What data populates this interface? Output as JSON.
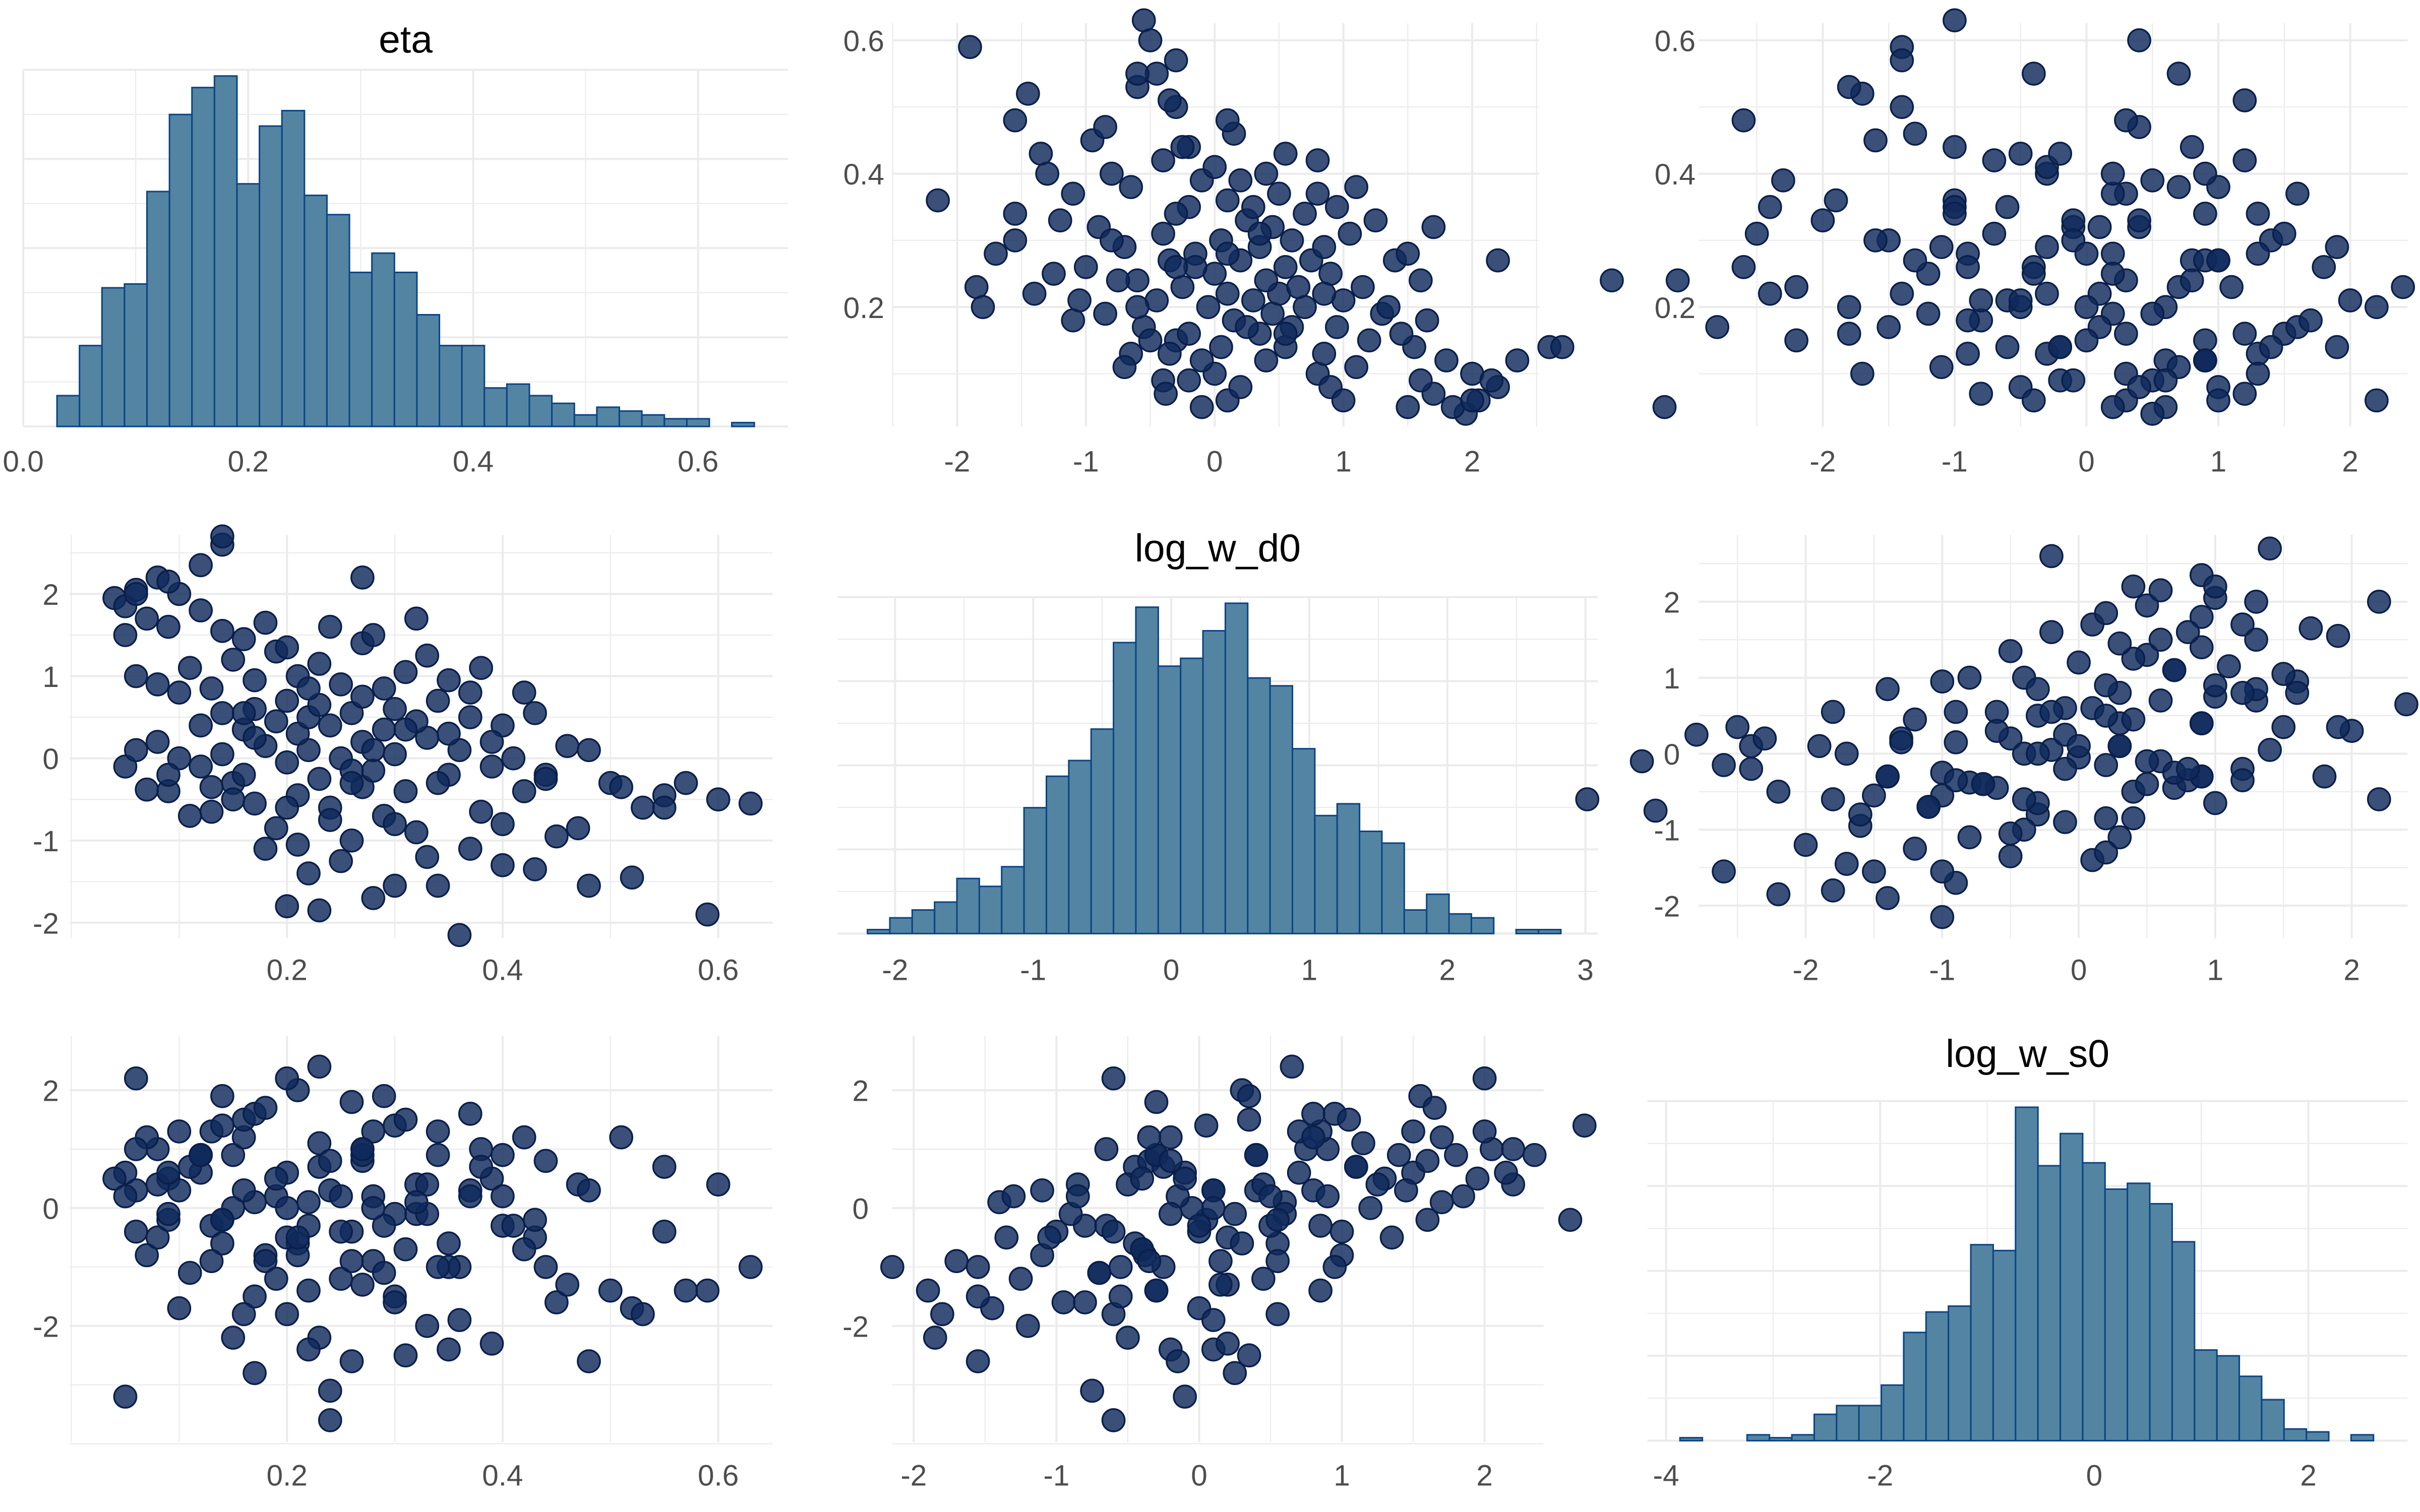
{
  "chart_data": {
    "type": "pairs",
    "variables": [
      "eta",
      "log_w_d0",
      "log_w_s0"
    ],
    "colors": {
      "hist_fill": "#5385a3",
      "hist_stroke": "#0d4584",
      "point_fill": "#0f2a5c",
      "point_stroke": "#0a1f4a",
      "grid": "#ebebeb"
    },
    "histograms": {
      "eta": {
        "start": 0.03,
        "binwidth": 0.02,
        "counts": [
          8,
          21,
          36,
          37,
          61,
          81,
          88,
          91,
          63,
          78,
          82,
          60,
          55,
          40,
          45,
          40,
          29,
          21,
          21,
          10,
          11,
          8,
          6,
          3,
          5,
          4,
          3,
          2,
          2,
          0,
          1
        ]
      },
      "log_w_d0": {
        "start": -2.2,
        "binwidth": 0.162,
        "counts": [
          1,
          4,
          6,
          8,
          14,
          12,
          17,
          32,
          40,
          44,
          52,
          74,
          83,
          68,
          70,
          77,
          84,
          65,
          63,
          47,
          30,
          33,
          26,
          23,
          6,
          10,
          5,
          4,
          0,
          1,
          1
        ]
      },
      "log_w_s0": {
        "start": -3.87,
        "binwidth": 0.209,
        "counts": [
          1,
          0,
          0,
          2,
          1,
          2,
          9,
          12,
          12,
          19,
          37,
          44,
          46,
          67,
          65,
          114,
          94,
          105,
          95,
          86,
          88,
          81,
          68,
          31,
          29,
          22,
          14,
          4,
          3,
          0,
          2
        ]
      }
    },
    "samples_columns": [
      "eta",
      "log_w_d0",
      "log_w_s0"
    ],
    "samples": [
      [
        0.59,
        -1.9,
        -1.4
      ],
      [
        0.36,
        -2.15,
        -1.0
      ],
      [
        0.23,
        -1.85,
        -2.2
      ],
      [
        0.2,
        -1.8,
        -1.8
      ],
      [
        0.48,
        -1.55,
        -2.6
      ],
      [
        0.52,
        -1.45,
        -1.7
      ],
      [
        0.43,
        -1.35,
        -0.5
      ],
      [
        0.3,
        -1.55,
        -1.5
      ],
      [
        0.28,
        -1.7,
        -0.9
      ],
      [
        0.33,
        -1.2,
        -2.0
      ],
      [
        0.37,
        -1.1,
        0.3
      ],
      [
        0.45,
        -0.95,
        -1.6
      ],
      [
        0.25,
        -1.25,
        -1.2
      ],
      [
        0.22,
        -1.4,
        0.1
      ],
      [
        0.18,
        -1.1,
        -0.8
      ],
      [
        0.4,
        -0.8,
        -0.3
      ],
      [
        0.47,
        -0.85,
        0.4
      ],
      [
        0.53,
        -0.6,
        -1.8
      ],
      [
        0.55,
        -0.45,
        0.7
      ],
      [
        0.63,
        -0.55,
        -1.0
      ],
      [
        0.6,
        -0.5,
        0.4
      ],
      [
        0.5,
        -0.3,
        -1.4
      ],
      [
        0.42,
        -0.4,
        -0.7
      ],
      [
        0.38,
        -0.65,
        1.0
      ],
      [
        0.35,
        -0.2,
        -2.4
      ],
      [
        0.32,
        -0.9,
        -0.1
      ],
      [
        0.29,
        -0.7,
        -1.1
      ],
      [
        0.27,
        -0.35,
        0.8
      ],
      [
        0.26,
        -1.0,
        -0.4
      ],
      [
        0.24,
        -0.6,
        -3.6
      ],
      [
        0.24,
        -0.75,
        -3.1
      ],
      [
        0.21,
        -0.45,
        -0.6
      ],
      [
        0.19,
        -0.85,
        0.2
      ],
      [
        0.17,
        -0.55,
        -1.5
      ],
      [
        0.15,
        -0.3,
        0.9
      ],
      [
        0.13,
        -0.65,
        -0.3
      ],
      [
        0.11,
        -0.7,
        -1.1
      ],
      [
        0.09,
        -0.4,
        0.5
      ],
      [
        0.07,
        -0.38,
        -0.8
      ],
      [
        0.05,
        -0.1,
        -3.2
      ],
      [
        0.06,
        0.1,
        0.3
      ],
      [
        0.08,
        0.2,
        -0.5
      ],
      [
        0.1,
        0.0,
        -1.7
      ],
      [
        0.12,
        -0.1,
        0.6
      ],
      [
        0.14,
        0.05,
        -0.2
      ],
      [
        0.16,
        -0.2,
        1.2
      ],
      [
        0.18,
        0.15,
        -0.9
      ],
      [
        0.2,
        -0.05,
        0.0
      ],
      [
        0.22,
        0.1,
        -2.4
      ],
      [
        0.23,
        -0.25,
        0.7
      ],
      [
        0.25,
        0.0,
        -0.4
      ],
      [
        0.27,
        0.2,
        -1.3
      ],
      [
        0.28,
        -0.15,
        0.2
      ],
      [
        0.3,
        0.05,
        1.4
      ],
      [
        0.31,
        -0.4,
        -0.7
      ],
      [
        0.33,
        0.25,
        -0.1
      ],
      [
        0.34,
        -0.3,
        0.9
      ],
      [
        0.36,
        0.1,
        -1.9
      ],
      [
        0.39,
        -0.1,
        0.5
      ],
      [
        0.41,
        0.0,
        -0.3
      ],
      [
        0.44,
        -0.2,
        0.8
      ],
      [
        0.46,
        0.15,
        -1.3
      ],
      [
        0.51,
        -0.35,
        1.2
      ],
      [
        0.57,
        -0.3,
        -1.4
      ],
      [
        0.12,
        0.4,
        0.9
      ],
      [
        0.14,
        0.55,
        -0.6
      ],
      [
        0.16,
        0.35,
        1.5
      ],
      [
        0.17,
        0.6,
        0.1
      ],
      [
        0.19,
        0.45,
        -1.2
      ],
      [
        0.2,
        0.7,
        0.6
      ],
      [
        0.21,
        0.3,
        2.0
      ],
      [
        0.22,
        0.5,
        -0.3
      ],
      [
        0.23,
        0.65,
        2.4
      ],
      [
        0.24,
        0.4,
        0.3
      ],
      [
        0.26,
        0.55,
        -0.9
      ],
      [
        0.27,
        0.75,
        1.0
      ],
      [
        0.29,
        0.35,
        1.9
      ],
      [
        0.3,
        0.6,
        -0.1
      ],
      [
        0.32,
        0.45,
        0.4
      ],
      [
        0.34,
        0.7,
        1.3
      ],
      [
        0.35,
        0.3,
        -0.6
      ],
      [
        0.37,
        0.5,
        0.2
      ],
      [
        0.4,
        0.4,
        0.9
      ],
      [
        0.43,
        0.55,
        -0.2
      ],
      [
        0.1,
        0.8,
        0.3
      ],
      [
        0.08,
        0.9,
        1.0
      ],
      [
        0.06,
        1.0,
        -0.4
      ],
      [
        0.11,
        1.1,
        0.7
      ],
      [
        0.13,
        0.85,
        1.3
      ],
      [
        0.15,
        1.2,
        0.0
      ],
      [
        0.17,
        0.95,
        1.6
      ],
      [
        0.19,
        1.3,
        0.5
      ],
      [
        0.21,
        1.0,
        -0.8
      ],
      [
        0.23,
        1.15,
        1.1
      ],
      [
        0.25,
        0.9,
        0.2
      ],
      [
        0.27,
        1.4,
        0.9
      ],
      [
        0.29,
        0.85,
        -0.3
      ],
      [
        0.31,
        1.05,
        1.5
      ],
      [
        0.33,
        1.25,
        0.4
      ],
      [
        0.35,
        0.95,
        -1.0
      ],
      [
        0.38,
        1.1,
        0.7
      ],
      [
        0.42,
        0.8,
        1.2
      ],
      [
        0.05,
        1.5,
        0.6
      ],
      [
        0.07,
        1.7,
        1.2
      ],
      [
        0.09,
        1.6,
        -0.2
      ],
      [
        0.12,
        1.8,
        0.9
      ],
      [
        0.14,
        1.55,
        1.9
      ],
      [
        0.16,
        1.45,
        0.3
      ],
      [
        0.18,
        1.65,
        1.7
      ],
      [
        0.2,
        1.35,
        -0.5
      ],
      [
        0.24,
        1.6,
        0.8
      ],
      [
        0.28,
        1.5,
        1.3
      ],
      [
        0.32,
        1.7,
        0.1
      ],
      [
        0.04,
        1.95,
        0.5
      ],
      [
        0.05,
        1.85,
        0.2
      ],
      [
        0.06,
        2.05,
        1.0
      ],
      [
        0.08,
        2.2,
        0.4
      ],
      [
        0.1,
        2.0,
        1.3
      ],
      [
        0.14,
        2.6,
        -0.2
      ],
      [
        0.12,
        2.35,
        0.9
      ],
      [
        0.09,
        2.15,
        0.6
      ],
      [
        0.27,
        2.2,
        1.0
      ],
      [
        0.06,
        2.0,
        2.2
      ],
      [
        0.14,
        2.7,
        1.4
      ],
      [
        0.17,
        0.25,
        -2.8
      ],
      [
        0.26,
        -0.15,
        -2.6
      ],
      [
        0.31,
        0.35,
        -2.5
      ],
      [
        0.15,
        -0.5,
        -2.2
      ],
      [
        0.39,
        0.2,
        -2.3
      ],
      [
        0.2,
        -0.6,
        2.2
      ],
      [
        0.26,
        -0.3,
        1.8
      ],
      [
        0.37,
        0.8,
        1.6
      ],
      [
        0.44,
        -0.25,
        -1.0
      ],
      [
        0.55,
        -0.6,
        -0.4
      ],
      [
        0.48,
        0.1,
        0.3
      ],
      [
        0.09,
        -0.2,
        -0.1
      ],
      [
        0.13,
        -0.35,
        -0.9
      ],
      [
        0.3,
        -0.8,
        -1.6
      ],
      [
        0.21,
        -1.05,
        -0.5
      ],
      [
        0.34,
        -1.55,
        -1.0
      ],
      [
        0.4,
        -1.3,
        0.2
      ],
      [
        0.16,
        0.55,
        -1.8
      ],
      [
        0.22,
        0.85,
        -1.4
      ],
      [
        0.28,
        0.1,
        0.0
      ]
    ],
    "panels": [
      {
        "id": "r1c1",
        "kind": "hist",
        "var": "eta",
        "title": "eta",
        "x_ticks": [
          {
            "v": 0.0,
            "label": "0.0"
          },
          {
            "v": 0.2,
            "label": "0.2"
          },
          {
            "v": 0.4,
            "label": "0.4"
          },
          {
            "v": 0.6,
            "label": "0.6"
          }
        ],
        "y_ticks": []
      },
      {
        "id": "r1c2",
        "kind": "scatter",
        "x_var": "log_w_d0",
        "y_var": "eta",
        "x_ticks": [
          {
            "v": -2,
            "label": "-2"
          },
          {
            "v": -1,
            "label": "-1"
          },
          {
            "v": 0,
            "label": "0"
          },
          {
            "v": 1,
            "label": "1"
          },
          {
            "v": 2,
            "label": "2"
          }
        ],
        "y_ticks": [
          {
            "v": 0.2,
            "label": "0.2"
          },
          {
            "v": 0.4,
            "label": "0.4"
          },
          {
            "v": 0.6,
            "label": "0.6"
          }
        ]
      },
      {
        "id": "r1c3",
        "kind": "scatter",
        "x_var": "log_w_s0",
        "y_var": "eta",
        "x_ticks": [
          {
            "v": -2,
            "label": "-2"
          },
          {
            "v": -1,
            "label": "-1"
          },
          {
            "v": 0,
            "label": "0"
          },
          {
            "v": 1,
            "label": "1"
          },
          {
            "v": 2,
            "label": "2"
          }
        ],
        "y_ticks": [
          {
            "v": 0.2,
            "label": "0.2"
          },
          {
            "v": 0.4,
            "label": "0.4"
          },
          {
            "v": 0.6,
            "label": "0.6"
          }
        ]
      },
      {
        "id": "r2c1",
        "kind": "scatter",
        "x_var": "eta",
        "y_var": "log_w_d0",
        "x_ticks": [
          {
            "v": 0.2,
            "label": "0.2"
          },
          {
            "v": 0.4,
            "label": "0.4"
          },
          {
            "v": 0.6,
            "label": "0.6"
          }
        ],
        "y_ticks": [
          {
            "v": -2,
            "label": "-2"
          },
          {
            "v": -1,
            "label": "-1"
          },
          {
            "v": 0,
            "label": "0"
          },
          {
            "v": 1,
            "label": "1"
          },
          {
            "v": 2,
            "label": "2"
          }
        ]
      },
      {
        "id": "r2c2",
        "kind": "hist",
        "var": "log_w_d0",
        "title": "log_w_d0",
        "x_ticks": [
          {
            "v": -2,
            "label": "-2"
          },
          {
            "v": -1,
            "label": "-1"
          },
          {
            "v": 0,
            "label": "0"
          },
          {
            "v": 1,
            "label": "1"
          },
          {
            "v": 2,
            "label": "2"
          },
          {
            "v": 3,
            "label": "3"
          }
        ],
        "y_ticks": []
      },
      {
        "id": "r2c3",
        "kind": "scatter",
        "x_var": "log_w_s0",
        "y_var": "log_w_d0",
        "x_ticks": [
          {
            "v": -2,
            "label": "-2"
          },
          {
            "v": -1,
            "label": "-1"
          },
          {
            "v": 0,
            "label": "0"
          },
          {
            "v": 1,
            "label": "1"
          },
          {
            "v": 2,
            "label": "2"
          }
        ],
        "y_ticks": [
          {
            "v": -2,
            "label": "-2"
          },
          {
            "v": -1,
            "label": "-1"
          },
          {
            "v": 0,
            "label": "0"
          },
          {
            "v": 1,
            "label": "1"
          },
          {
            "v": 2,
            "label": "2"
          }
        ]
      },
      {
        "id": "r3c1",
        "kind": "scatter",
        "x_var": "eta",
        "y_var": "log_w_s0",
        "x_ticks": [
          {
            "v": 0.2,
            "label": "0.2"
          },
          {
            "v": 0.4,
            "label": "0.4"
          },
          {
            "v": 0.6,
            "label": "0.6"
          }
        ],
        "y_ticks": [
          {
            "v": -2,
            "label": "-2"
          },
          {
            "v": 0,
            "label": "0"
          },
          {
            "v": 2,
            "label": "2"
          }
        ]
      },
      {
        "id": "r3c2",
        "kind": "scatter",
        "x_var": "log_w_d0",
        "y_var": "log_w_s0",
        "x_ticks": [
          {
            "v": -2,
            "label": "-2"
          },
          {
            "v": -1,
            "label": "-1"
          },
          {
            "v": 0,
            "label": "0"
          },
          {
            "v": 1,
            "label": "1"
          },
          {
            "v": 2,
            "label": "2"
          }
        ],
        "y_ticks": [
          {
            "v": -2,
            "label": "-2"
          },
          {
            "v": 0,
            "label": "0"
          },
          {
            "v": 2,
            "label": "2"
          }
        ]
      },
      {
        "id": "r3c3",
        "kind": "hist",
        "var": "log_w_s0",
        "title": "log_w_s0",
        "x_ticks": [
          {
            "v": -4,
            "label": "-4"
          },
          {
            "v": -2,
            "label": "-2"
          },
          {
            "v": 0,
            "label": "0"
          },
          {
            "v": 2,
            "label": "2"
          }
        ],
        "y_ticks": []
      }
    ]
  }
}
